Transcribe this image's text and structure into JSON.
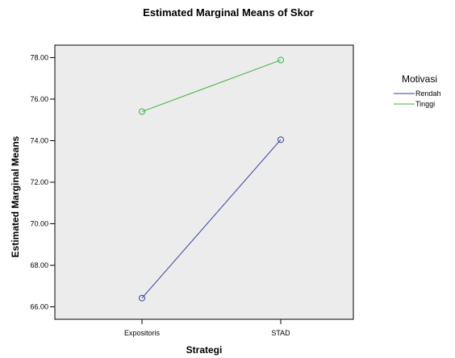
{
  "chart_data": {
    "type": "line",
    "title": "Estimated Marginal Means of Skor",
    "xlabel": "Strategi",
    "ylabel": "Estimated Marginal Means",
    "categories": [
      "Expositoris",
      "STAD"
    ],
    "ylim": [
      65.4,
      78.6
    ],
    "yticks": [
      "66.00",
      "68.00",
      "70.00",
      "72.00",
      "74.00",
      "76.00",
      "78.00"
    ],
    "ytick_values": [
      66,
      68,
      70,
      72,
      74,
      76,
      78
    ],
    "grid": false,
    "legend": {
      "title": "Motivasi",
      "position": "right"
    },
    "series": [
      {
        "name": "Rendah",
        "values": [
          66.42,
          74.05
        ],
        "color": "#3040a0"
      },
      {
        "name": "Tinggi",
        "values": [
          75.4,
          77.88
        ],
        "color": "#40b040"
      }
    ],
    "plot_background": "#ececec"
  }
}
